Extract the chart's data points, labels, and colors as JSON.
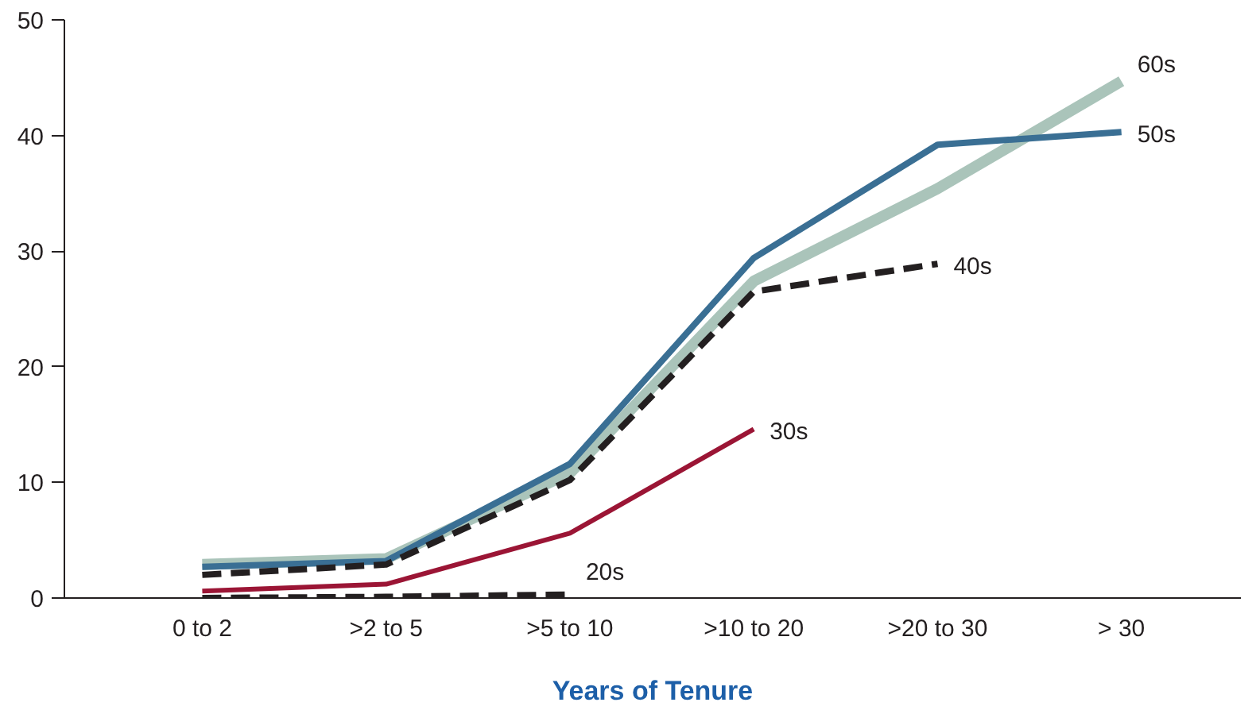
{
  "chart_data": {
    "type": "line",
    "xlabel": "Years of Tenure",
    "categories": [
      "0 to 2",
      ">2 to 5",
      ">5 to 10",
      ">10 to 20",
      ">20 to 30",
      "> 30"
    ],
    "ylim": [
      0,
      50
    ],
    "yticks": [
      0,
      10,
      20,
      30,
      40,
      50
    ],
    "grid": false,
    "marker": "none",
    "series": [
      {
        "name": "60s",
        "color": "#aac4ba",
        "values": [
          2.9,
          3.4,
          10.8,
          27.4,
          35.4,
          44.7
        ],
        "line_style": "solid"
      },
      {
        "name": "50s",
        "color": "#3a6f94",
        "values": [
          2.7,
          3.2,
          11.6,
          29.4,
          39.2,
          40.3
        ],
        "line_style": "solid"
      },
      {
        "name": "40s",
        "color": "#231f20",
        "values": [
          2.0,
          2.9,
          10.2,
          26.5,
          28.9,
          null
        ],
        "line_style": "dashed"
      },
      {
        "name": "30s",
        "color": "#9b1535",
        "values": [
          0.6,
          1.2,
          5.6,
          14.6,
          null,
          null
        ],
        "line_style": "solid"
      },
      {
        "name": "20s",
        "color": "#231f20",
        "values": [
          0,
          0.1,
          0.3,
          null,
          null,
          null
        ],
        "line_style": "dashed"
      }
    ]
  }
}
